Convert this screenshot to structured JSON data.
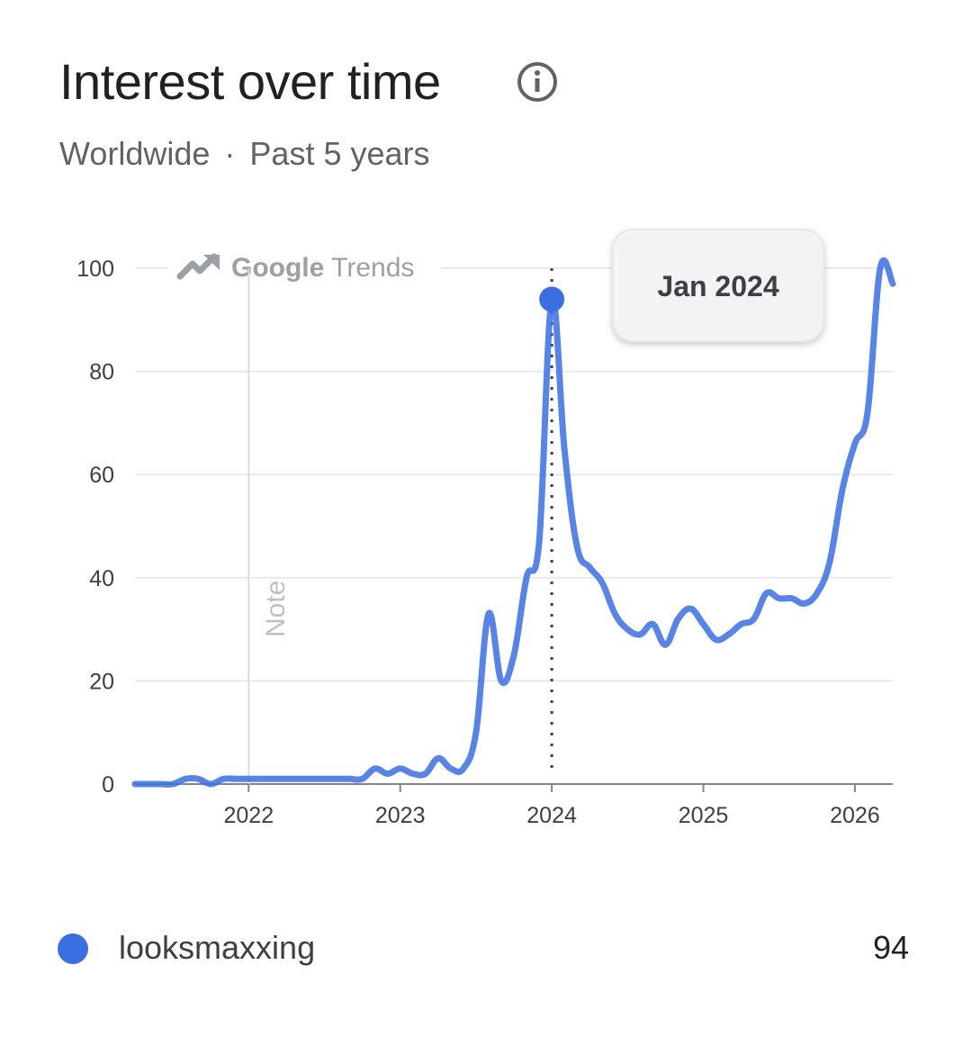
{
  "header": {
    "title": "Interest over time",
    "info_icon": "info-circle-icon",
    "region": "Worldwide",
    "separator": "·",
    "period": "Past 5 years"
  },
  "watermark": {
    "icon": "trending-up-icon",
    "brand": "Google",
    "product": "Trends"
  },
  "note_label": "Note",
  "tooltip": {
    "label": "Jan 2024"
  },
  "legend": {
    "term": "looksmaxxing",
    "value": "94",
    "color": "#3b6fe0"
  },
  "chart_data": {
    "type": "line",
    "ylim": [
      0,
      100
    ],
    "yticks": [
      0,
      20,
      40,
      60,
      80,
      100
    ],
    "xticks": [
      {
        "label": "2022",
        "x": "2022-01"
      },
      {
        "label": "2023",
        "x": "2023-01"
      },
      {
        "label": "2024",
        "x": "2024-01"
      },
      {
        "label": "2025",
        "x": "2025-01"
      },
      {
        "label": "2026",
        "x": "2026-01"
      }
    ],
    "grid": true,
    "highlight": {
      "x": "2024-01",
      "y": 94
    },
    "series": [
      {
        "name": "looksmaxxing",
        "color": "#3b6fe0",
        "points": [
          [
            "2021-04",
            0
          ],
          [
            "2021-05",
            0
          ],
          [
            "2021-06",
            0
          ],
          [
            "2021-07",
            0
          ],
          [
            "2021-08",
            1
          ],
          [
            "2021-09",
            1
          ],
          [
            "2021-10",
            0
          ],
          [
            "2021-11",
            1
          ],
          [
            "2021-12",
            1
          ],
          [
            "2022-01",
            1
          ],
          [
            "2022-02",
            1
          ],
          [
            "2022-03",
            1
          ],
          [
            "2022-04",
            1
          ],
          [
            "2022-05",
            1
          ],
          [
            "2022-06",
            1
          ],
          [
            "2022-07",
            1
          ],
          [
            "2022-08",
            1
          ],
          [
            "2022-09",
            1
          ],
          [
            "2022-10",
            1
          ],
          [
            "2022-11",
            3
          ],
          [
            "2022-12",
            2
          ],
          [
            "2023-01",
            3
          ],
          [
            "2023-02",
            2
          ],
          [
            "2023-03",
            2
          ],
          [
            "2023-04",
            5
          ],
          [
            "2023-05",
            3
          ],
          [
            "2023-06",
            3
          ],
          [
            "2023-07",
            10
          ],
          [
            "2023-08",
            33
          ],
          [
            "2023-09",
            20
          ],
          [
            "2023-10",
            25
          ],
          [
            "2023-11",
            40
          ],
          [
            "2023-12",
            47
          ],
          [
            "2024-01",
            94
          ],
          [
            "2024-02",
            65
          ],
          [
            "2024-03",
            46
          ],
          [
            "2024-04",
            42
          ],
          [
            "2024-05",
            39
          ],
          [
            "2024-06",
            33
          ],
          [
            "2024-07",
            30
          ],
          [
            "2024-08",
            29
          ],
          [
            "2024-09",
            31
          ],
          [
            "2024-10",
            27
          ],
          [
            "2024-11",
            32
          ],
          [
            "2024-12",
            34
          ],
          [
            "2025-01",
            31
          ],
          [
            "2025-02",
            28
          ],
          [
            "2025-03",
            29
          ],
          [
            "2025-04",
            31
          ],
          [
            "2025-05",
            32
          ],
          [
            "2025-06",
            37
          ],
          [
            "2025-07",
            36
          ],
          [
            "2025-08",
            36
          ],
          [
            "2025-09",
            35
          ],
          [
            "2025-10",
            37
          ],
          [
            "2025-11",
            43
          ],
          [
            "2025-12",
            57
          ],
          [
            "2026-01",
            66
          ],
          [
            "2026-02",
            72
          ],
          [
            "2026-03",
            100
          ],
          [
            "2026-04",
            97
          ]
        ]
      }
    ]
  }
}
